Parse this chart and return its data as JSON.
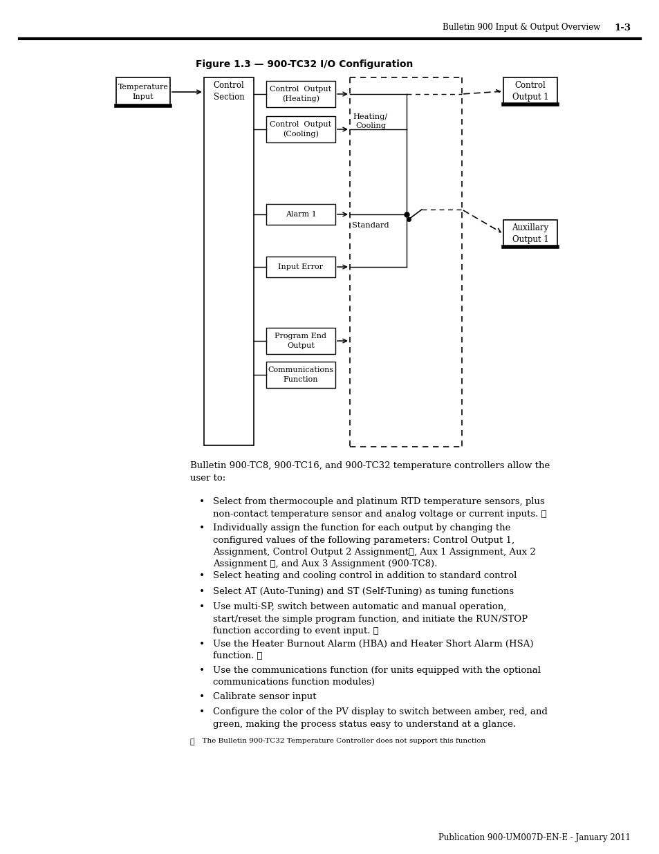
{
  "page_header_left": "Bulletin 900 Input & Output Overview",
  "page_header_right": "1-3",
  "figure_title": "Figure 1.3 — 900-TC32 I/O Configuration",
  "footer_text": "Publication 900-UM007D-EN-E - January 2011",
  "footnote_symbol": "①",
  "footnote_text": "  The Bulletin 900-TC32 Temperature Controller does not support this function",
  "body_intro": "Bulletin 900-TC8, 900-TC16, and 900-TC32 temperature controllers allow the\nuser to:",
  "bullet_points": [
    "Select from thermocouple and platinum RTD temperature sensors, plus\nnon-contact temperature sensor and analog voltage or current inputs. ①",
    "Individually assign the function for each output by changing the\nconfigured values of the following parameters: Control Output 1,\nAssignment, Control Output 2 Assignment①, Aux 1 Assignment, Aux 2\nAssignment ①, and Aux 3 Assignment (900-TC8).",
    "Select heating and cooling control in addition to standard control",
    "Select AT (Auto-Tuning) and ST (Self-Tuning) as tuning functions",
    "Use multi-SP, switch between automatic and manual operation,\nstart/reset the simple program function, and initiate the RUN/STOP\nfunction according to event input. ①",
    "Use the Heater Burnout Alarm (HBA) and Heater Short Alarm (HSA)\nfunction. ①",
    "Use the communications function (for units equipped with the optional\ncommunications function modules)",
    "Calibrate sensor input",
    "Configure the color of the PV display to switch between amber, red, and\ngreen, making the process status easy to understand at a glance."
  ],
  "background_color": "#ffffff",
  "text_color": "#000000"
}
